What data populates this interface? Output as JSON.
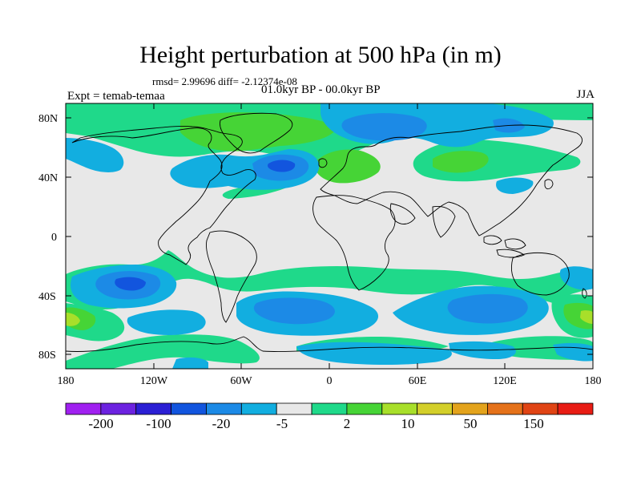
{
  "title": "Height perturbation at 500 hPa (in m)",
  "stats": "rmsd= 2.99696 diff= -2.12374e-08",
  "period": "01.0kyr BP - 00.0kyr BP",
  "experiment": "Expt = temab-temaa",
  "season": "JJA",
  "axes": {
    "lat_labels": [
      "80N",
      "40N",
      "0",
      "40S",
      "80S"
    ],
    "lon_labels": [
      "180",
      "120W",
      "60W",
      "0",
      "60E",
      "120E",
      "180"
    ]
  },
  "colorbar": {
    "colors": [
      "#a020f0",
      "#6c22e0",
      "#2b1fd4",
      "#1255de",
      "#1c8ae6",
      "#12aee0",
      "#e8e8e8",
      "#1fd98a",
      "#46d436",
      "#a8df2a",
      "#d3cf2a",
      "#e3a31c",
      "#e5721a",
      "#e04414",
      "#e81c14"
    ],
    "labels": [
      "-200",
      "-100",
      "-20",
      "-5",
      "2",
      "10",
      "50",
      "150"
    ]
  },
  "map": {
    "background_color": "#e8e8e8",
    "coastline_color": "#000000"
  }
}
